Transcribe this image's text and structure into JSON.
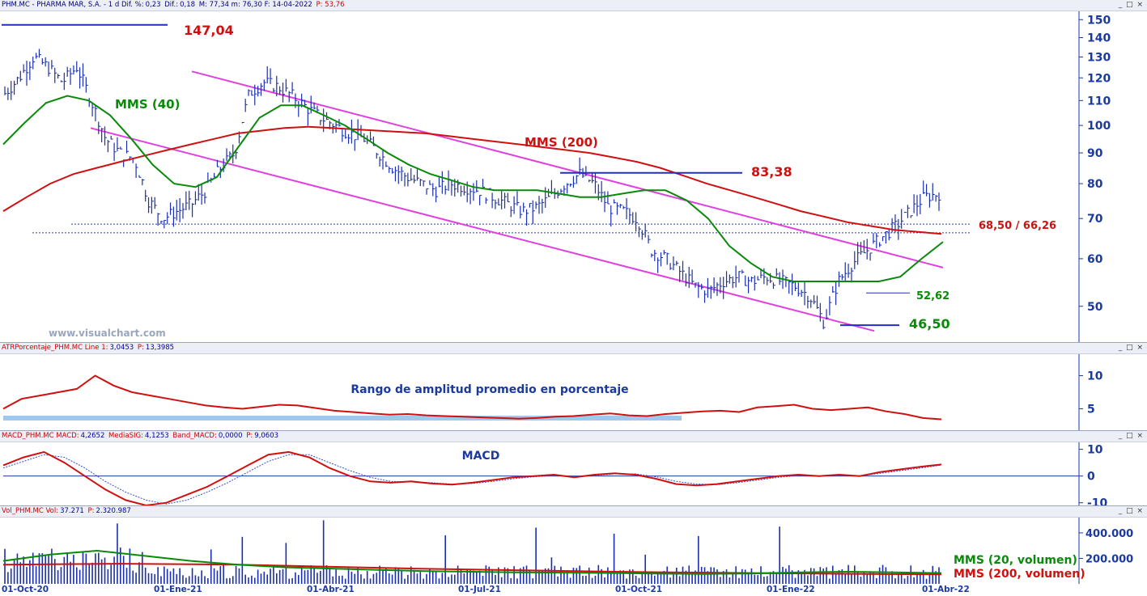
{
  "panels": {
    "price": {
      "header": {
        "prefix": "PHM.MC - PHARMA MAR, S.A. -  1 d  Dif. %:",
        "v1": "0,23",
        "t2": " Dif.:",
        "v2": "0,18",
        "t3": " M: 77,34  m: 76,30  F: 14-04-2022 ",
        "v3": "P: 53,76"
      },
      "controls": "_ □ ×",
      "watermark": "www.visualchart.com",
      "annotations": {
        "high": "147,04",
        "mid": "83,38",
        "band": "68,50 / 66,26",
        "support": "52,62",
        "low": "46,50",
        "mms40": "MMS (40)",
        "mms200": "MMS (200)"
      }
    },
    "atr": {
      "header": {
        "name": "ATRPorcentaje_PHM.MC  Line 1:",
        "v1": "3,0453",
        "t2": " P:",
        "v2": "13,3985"
      },
      "controls": "_ □ ×",
      "title": "Rango de amplitud promedio en porcentaje"
    },
    "macd": {
      "header": {
        "name": "MACD_PHM.MC  MACD:",
        "v1": "4,2652",
        "t2": " MediaSIG:",
        "v2": "4,1253",
        "t3": " Band_MACD:",
        "v3": "0,0000",
        "t4": " P:",
        "v4": "9,0603"
      },
      "controls": "_ □ ×",
      "title": "MACD"
    },
    "volume": {
      "header": {
        "name": "Vol_PHM.MC  Vol:",
        "v1": "37.271",
        "t2": " P:",
        "v2": "2.320.987"
      },
      "controls": "_ □ ×",
      "legend20": "MMS (20, volumen)",
      "legend200": "MMS (200, volumen)"
    }
  },
  "colors": {
    "bars": "#1a2fb0",
    "mms40": "#0a8a0a",
    "mms200": "#d01010",
    "channel": "#e040e0",
    "level": "#2030c0",
    "atr_band": "#9fc8ef"
  },
  "chart_data": [
    {
      "type": "line",
      "subtype": "ohlc-price",
      "x_labels": [
        "01-Oct-20",
        "01-Ene-21",
        "01-Abr-21",
        "01-Jul-21",
        "01-Oct-21",
        "01-Ene-22",
        "01-Abr-22"
      ],
      "y_ticks": [
        150,
        140,
        130,
        120,
        110,
        100,
        90,
        80,
        70,
        60,
        50
      ],
      "ylim": [
        44,
        152
      ],
      "scale": "log",
      "series": [
        {
          "name": "MMS (40)",
          "values": [
            93,
            101,
            109,
            112,
            110,
            104,
            95,
            86,
            80,
            79,
            82,
            92,
            103,
            108,
            108,
            104,
            100,
            95,
            90,
            86,
            83,
            81,
            79,
            78,
            78,
            78,
            77,
            76,
            76,
            77,
            78,
            78,
            75,
            70,
            63,
            59,
            56,
            55,
            55,
            55,
            55,
            55,
            56,
            60,
            64
          ]
        },
        {
          "name": "MMS (200)",
          "values": [
            72,
            76,
            80,
            83,
            85,
            87,
            89,
            91,
            93,
            95,
            97,
            98,
            99,
            99.5,
            99,
            98.5,
            98,
            97.5,
            97,
            96,
            95,
            94,
            93,
            92,
            91,
            90,
            88.5,
            87,
            85,
            82.5,
            80,
            78,
            76,
            74,
            72,
            70.5,
            69,
            68,
            67,
            66.5,
            66
          ]
        }
      ],
      "close": [
        113,
        120,
        130,
        125,
        118,
        125,
        110,
        95,
        90,
        88,
        75,
        70,
        72,
        74,
        78,
        85,
        90,
        113,
        118,
        116,
        112,
        107,
        103,
        100,
        97,
        95,
        90,
        85,
        82,
        80,
        78,
        80,
        79,
        78,
        76,
        74,
        72,
        73,
        76,
        80,
        83,
        80,
        73,
        72,
        70,
        62,
        60,
        57,
        54,
        53,
        55,
        56,
        55,
        56,
        55,
        54,
        52,
        47,
        55,
        59,
        62,
        65,
        68,
        72,
        76,
        77
      ],
      "levels": [
        147.04,
        83.38,
        68.5,
        66.26,
        52.62,
        46.5
      ]
    },
    {
      "type": "line",
      "name": "ATRPorcentaje",
      "y_ticks": [
        10,
        5
      ],
      "ylim": [
        2,
        13
      ],
      "values": [
        5,
        6.5,
        7,
        7.5,
        8,
        10,
        8.5,
        7.5,
        7,
        6.5,
        6,
        5.5,
        5.2,
        5,
        5.3,
        5.6,
        5.5,
        5.1,
        4.7,
        4.5,
        4.3,
        4.1,
        4.2,
        4.0,
        3.9,
        3.8,
        3.7,
        3.6,
        3.5,
        3.6,
        3.8,
        3.9,
        4.1,
        4.3,
        4.0,
        3.9,
        4.2,
        4.4,
        4.6,
        4.7,
        4.5,
        5.2,
        5.4,
        5.6,
        5.0,
        4.8,
        5.0,
        5.2,
        4.6,
        4.2,
        3.6,
        3.4
      ]
    },
    {
      "type": "line",
      "name": "MACD",
      "y_ticks": [
        10,
        0,
        -10
      ],
      "ylim": [
        -11,
        12
      ],
      "series": [
        {
          "name": "MACD",
          "values": [
            4,
            7,
            9,
            5,
            0,
            -5,
            -9,
            -11,
            -10,
            -7,
            -4,
            0,
            4,
            8,
            9,
            7,
            3,
            0,
            -2,
            -2.5,
            -2,
            -2.8,
            -3.2,
            -2.5,
            -1.5,
            -0.5,
            0,
            0.5,
            -0.5,
            0.5,
            1,
            0.5,
            -1,
            -3,
            -3.5,
            -3,
            -2,
            -1,
            0,
            0.5,
            0,
            0.5,
            0,
            1.5,
            2.5,
            3.5,
            4.3
          ]
        },
        {
          "name": "MediaSIG",
          "values": [
            3,
            5.5,
            8,
            7,
            3,
            -2,
            -6,
            -9,
            -10.5,
            -9,
            -6,
            -2.5,
            1.5,
            5.5,
            8,
            8,
            5,
            2,
            -0.5,
            -2,
            -2.2,
            -2.5,
            -3,
            -2.8,
            -2,
            -1,
            -0.3,
            0.2,
            0,
            0.2,
            0.8,
            0.8,
            -0.3,
            -2,
            -3,
            -3.2,
            -2.5,
            -1.5,
            -0.5,
            0.2,
            0.1,
            0.3,
            0.1,
            1,
            2,
            3,
            4.1
          ]
        }
      ]
    },
    {
      "type": "bar",
      "name": "Volumen",
      "y_ticks": [
        "400.000",
        "200.000"
      ],
      "ylim": [
        0,
        520000
      ]
    }
  ],
  "x_axis": {
    "labels": [
      {
        "text": "01-Oct-20",
        "x": 0
      },
      {
        "text": "01-Ene-21",
        "x": 1
      },
      {
        "text": "01-Abr-21",
        "x": 2
      },
      {
        "text": "01-Jul-21",
        "x": 3
      },
      {
        "text": "01-Oct-21",
        "x": 4
      },
      {
        "text": "01-Ene-22",
        "x": 5
      },
      {
        "text": "01-Abr-22",
        "x": 6
      }
    ]
  }
}
